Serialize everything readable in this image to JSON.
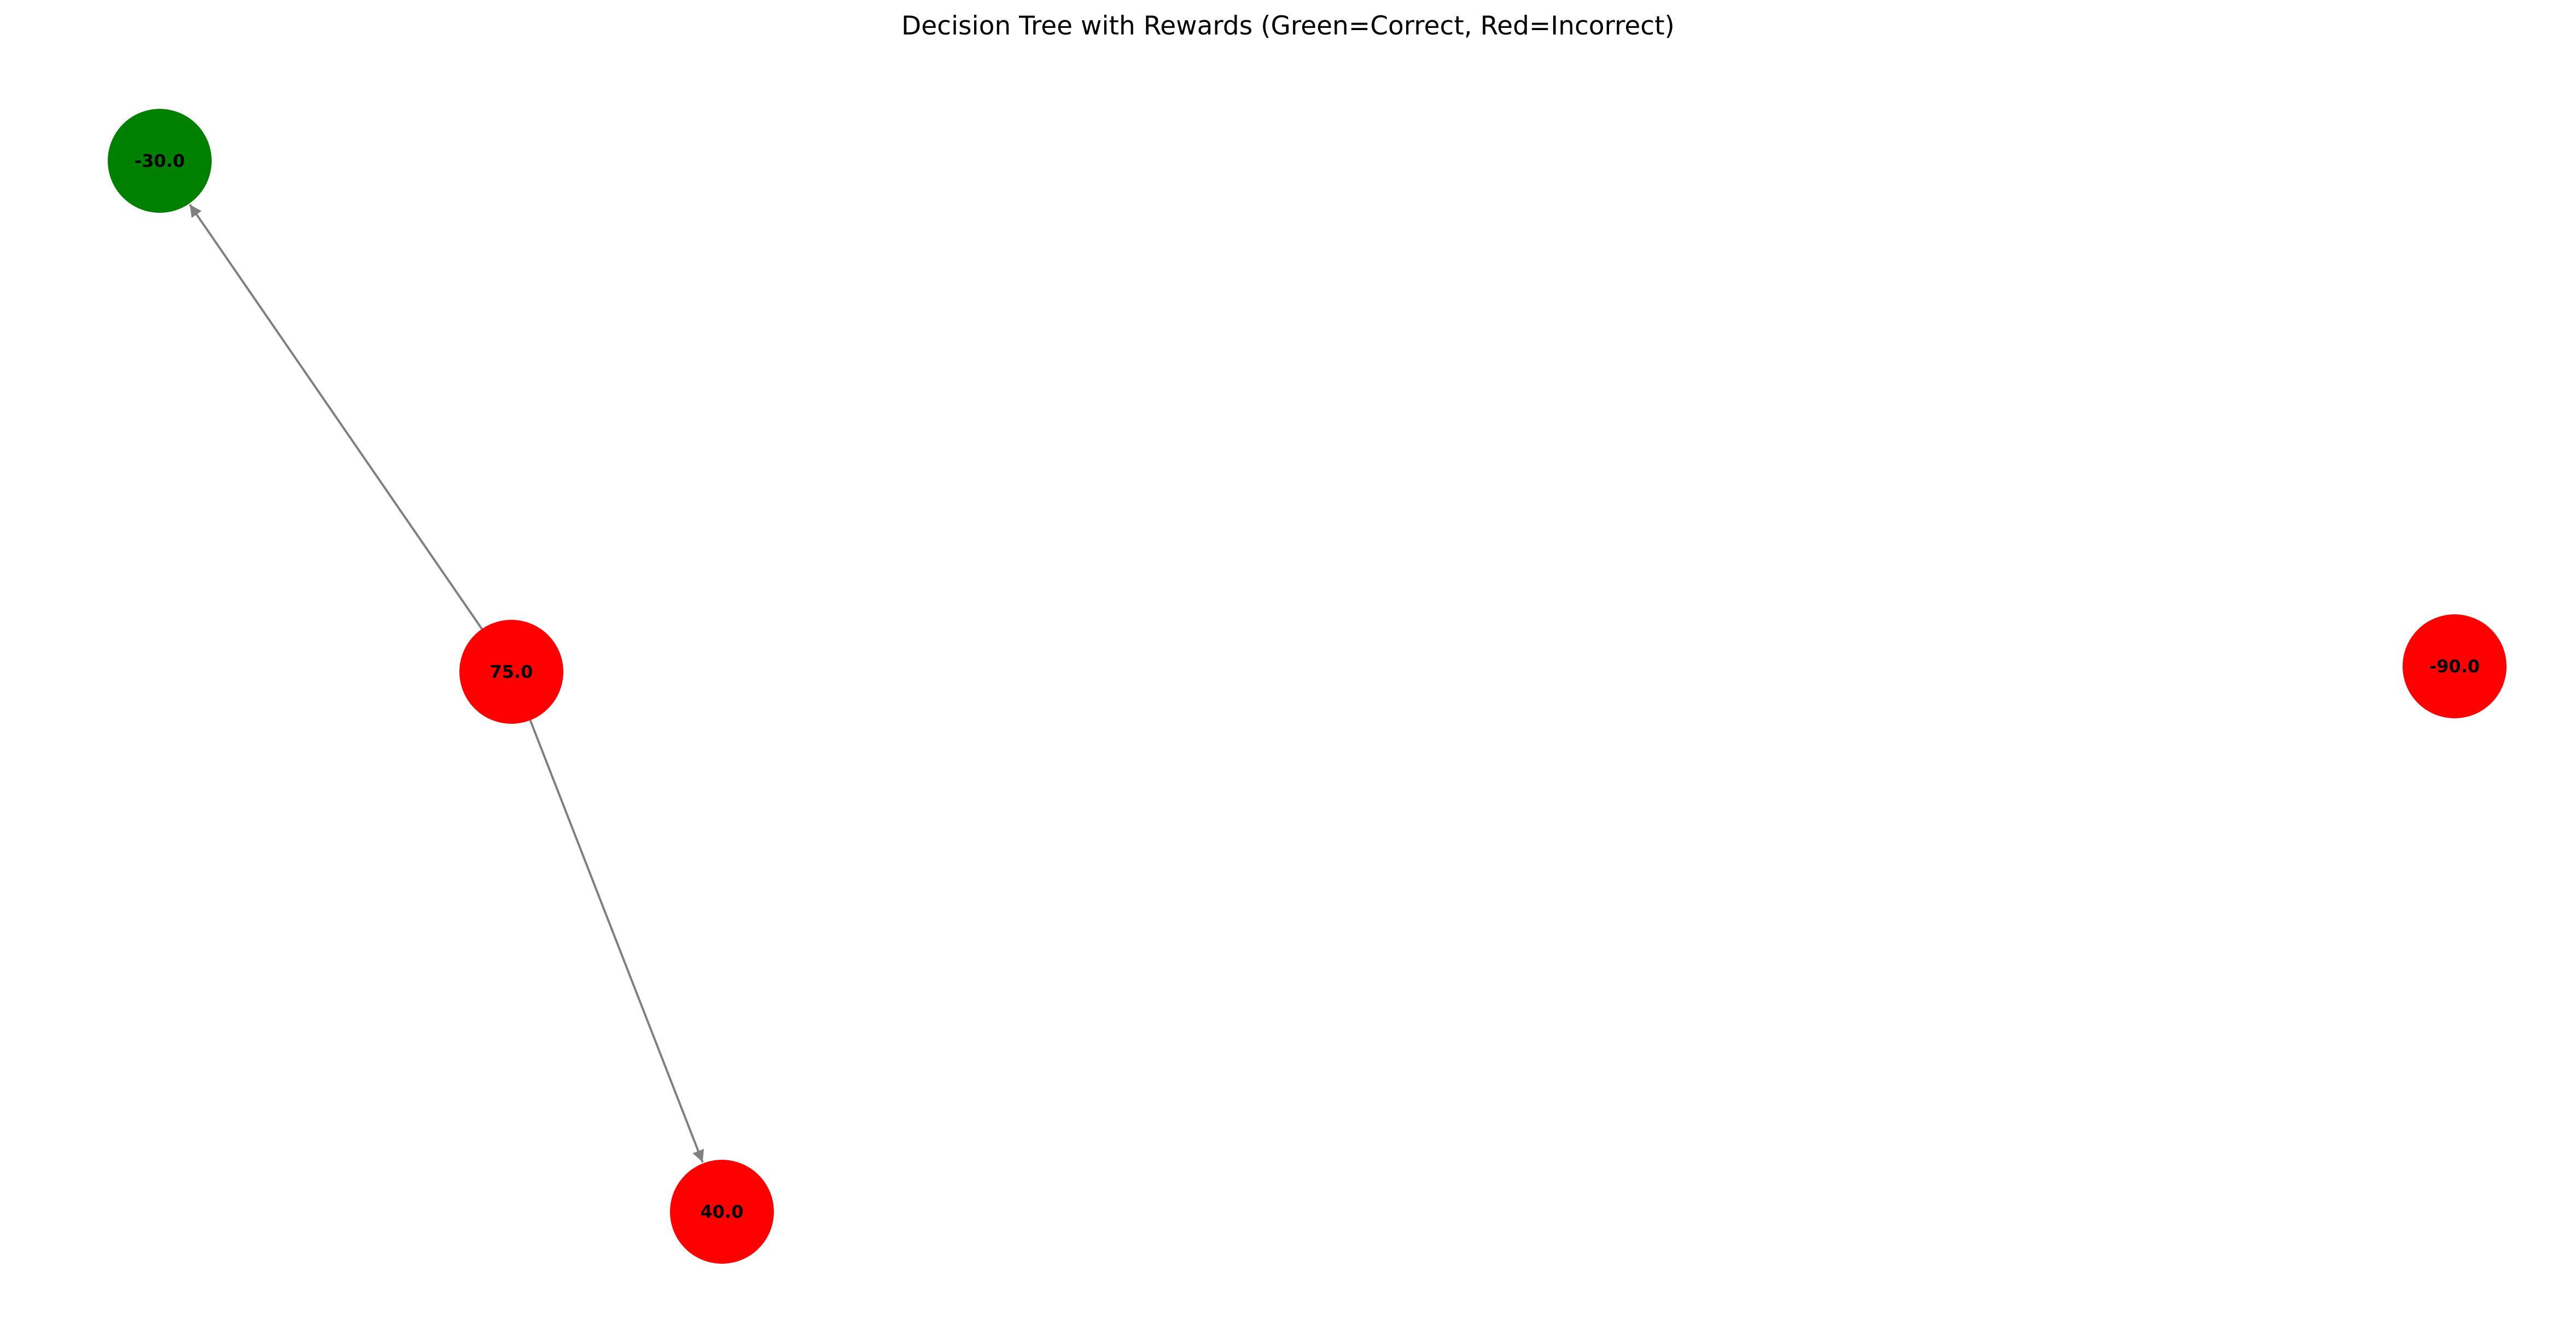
{
  "diagram": {
    "title": "Decision Tree with Rewards (Green=Correct, Red=Incorrect)",
    "colors": {
      "correct": "#008000",
      "incorrect": "#ff0000",
      "edge": "#808080",
      "label": "#000000"
    },
    "nodes": [
      {
        "id": "n-neg30",
        "label": "-30.0",
        "status": "correct"
      },
      {
        "id": "n-75",
        "label": "75.0",
        "status": "incorrect"
      },
      {
        "id": "n-40",
        "label": "40.0",
        "status": "incorrect"
      },
      {
        "id": "n-neg90",
        "label": "-90.0",
        "status": "incorrect"
      }
    ],
    "edges": [
      {
        "from": "n-75",
        "to": "n-neg30"
      },
      {
        "from": "n-75",
        "to": "n-40"
      }
    ]
  }
}
